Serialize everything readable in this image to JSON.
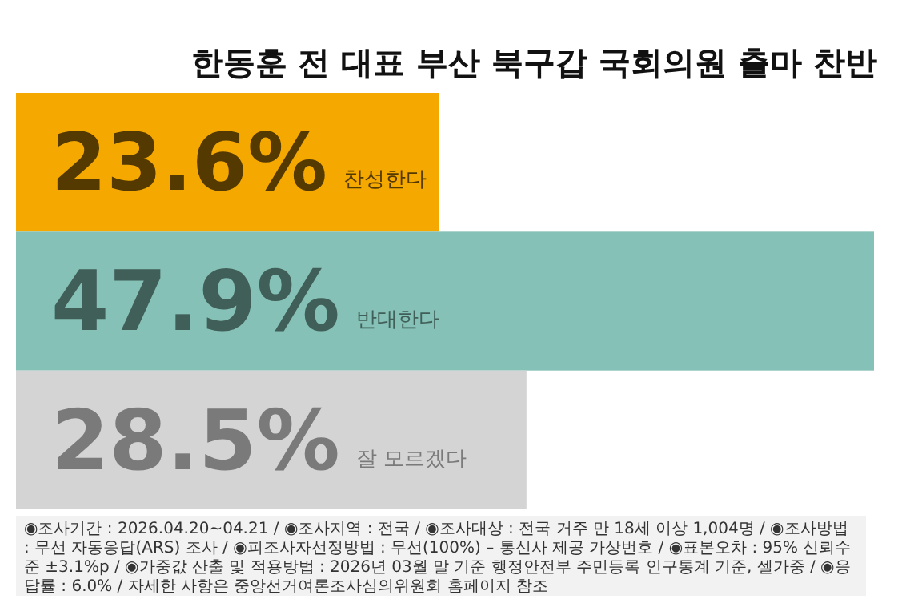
{
  "chart_data": {
    "type": "bar",
    "orientation": "horizontal",
    "title": "한동훈 전 대표 부산 북구갑 국회의원 출마 찬반",
    "categories": [
      "찬성한다",
      "반대한다",
      "잘 모르겠다"
    ],
    "values": [
      23.6,
      47.9,
      28.5
    ],
    "value_labels": [
      "23.6%",
      "47.9%",
      "28.5%"
    ],
    "colors": [
      "#f5a800",
      "#85c1b6",
      "#d4d4d4"
    ],
    "annotations": [
      "◉조사기간 : 2026.04.20~04.21 / ◉조사지역 : 전국 / ◉조사대상 : 전국 거주 만 18세 이상 1,004명 / ◉조사방법 : 무선 자동응답(ARS) 조사 / ◉피조사자선정방법 : 무선(100%) – 통신사 제공 가상번호 / ◉표본오차 : 95% 신뢰수준 ±3.1%p / ◉가중값 산출 및 적용방법 : 2026년 03월 말 기준 행정안전부 주민등록 인구통계 기준, 셀가중 / ◉응답률 : 6.0% / 자세한 사항은 중앙선거여론조사심의위원회 홈페이지 참조"
    ]
  }
}
